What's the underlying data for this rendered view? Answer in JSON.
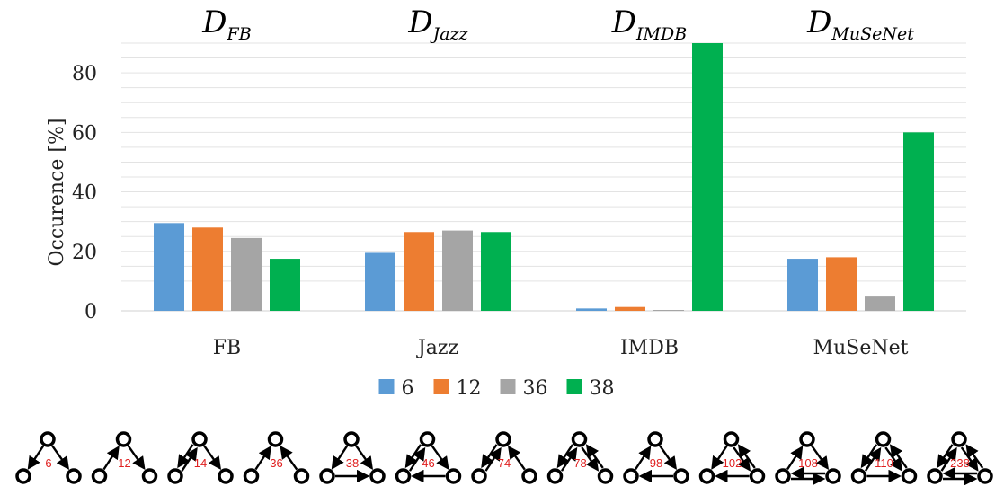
{
  "chart_data": {
    "type": "bar",
    "ylabel": "Occurence [%]",
    "ylim": [
      0,
      90
    ],
    "yticks": [
      0,
      20,
      40,
      60,
      80
    ],
    "grid": true,
    "legend_position": "bottom",
    "categories": [
      "FB",
      "Jazz",
      "IMDB",
      "MuSeNet"
    ],
    "category_titles": [
      {
        "main": "D",
        "sub": "FB"
      },
      {
        "main": "D",
        "sub": "Jazz"
      },
      {
        "main": "D",
        "sub": "IMDB"
      },
      {
        "main": "D",
        "sub": "MuSeNet"
      }
    ],
    "series": [
      {
        "name": "6",
        "color": "#5b9bd5",
        "values": [
          29.5,
          19.5,
          0.8,
          17.5
        ]
      },
      {
        "name": "12",
        "color": "#ed7d31",
        "values": [
          28.0,
          26.5,
          1.3,
          18.0
        ]
      },
      {
        "name": "36",
        "color": "#a5a5a5",
        "values": [
          24.5,
          27.0,
          0.3,
          4.8
        ]
      },
      {
        "name": "38",
        "color": "#00b050",
        "values": [
          17.5,
          26.5,
          90.0,
          60.0
        ]
      }
    ]
  },
  "motifs": [
    "6",
    "12",
    "14",
    "36",
    "38",
    "46",
    "74",
    "78",
    "98",
    "102",
    "108",
    "110",
    "238"
  ]
}
